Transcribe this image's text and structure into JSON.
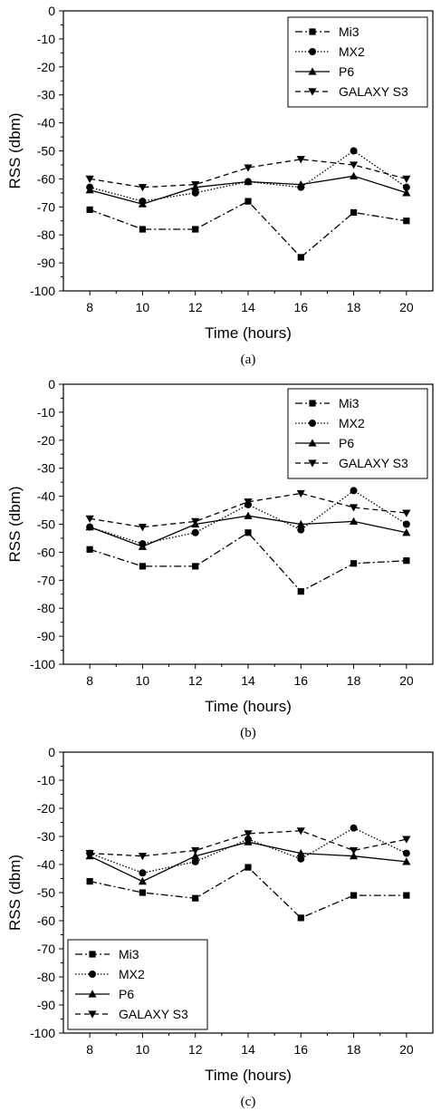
{
  "chart_data": [
    {
      "type": "line",
      "caption": "(a)",
      "xlabel": "Time (hours)",
      "ylabel": "RSS (dbm)",
      "x": [
        8,
        10,
        12,
        14,
        16,
        18,
        20
      ],
      "xticks": [
        "8",
        "10",
        "12",
        "14",
        "16",
        "18",
        "20"
      ],
      "yticks": [
        "0",
        "-10",
        "-20",
        "-30",
        "-40",
        "-50",
        "-60",
        "-70",
        "-80",
        "-90",
        "-100"
      ],
      "xlim": [
        7,
        21
      ],
      "ylim": [
        -100,
        0
      ],
      "legend_position": "top-right",
      "series": [
        {
          "name": "Mi3",
          "values": [
            -71,
            -78,
            -78,
            -68,
            -88,
            -72,
            -75
          ]
        },
        {
          "name": "MX2",
          "values": [
            -63,
            -68,
            -65,
            -61,
            -63,
            -50,
            -63
          ]
        },
        {
          "name": "P6",
          "values": [
            -64,
            -69,
            -63,
            -61,
            -62,
            -59,
            -65
          ]
        },
        {
          "name": "GALAXY S3",
          "values": [
            -60,
            -63,
            -62,
            -56,
            -53,
            -55,
            -60
          ]
        }
      ]
    },
    {
      "type": "line",
      "caption": "(b)",
      "xlabel": "Time (hours)",
      "ylabel": "RSS (dbm)",
      "x": [
        8,
        10,
        12,
        14,
        16,
        18,
        20
      ],
      "xticks": [
        "8",
        "10",
        "12",
        "14",
        "16",
        "18",
        "20"
      ],
      "yticks": [
        "0",
        "-10",
        "-20",
        "-30",
        "-40",
        "-50",
        "-60",
        "-70",
        "-80",
        "-90",
        "-100"
      ],
      "xlim": [
        7,
        21
      ],
      "ylim": [
        -100,
        0
      ],
      "legend_position": "top-right",
      "series": [
        {
          "name": "Mi3",
          "values": [
            -59,
            -65,
            -65,
            -53,
            -74,
            -64,
            -63
          ]
        },
        {
          "name": "MX2",
          "values": [
            -51,
            -57,
            -53,
            -43,
            -52,
            -38,
            -50
          ]
        },
        {
          "name": "P6",
          "values": [
            -51,
            -58,
            -50,
            -47,
            -50,
            -49,
            -53
          ]
        },
        {
          "name": "GALAXY S3",
          "values": [
            -48,
            -51,
            -49,
            -42,
            -39,
            -44,
            -46
          ]
        }
      ]
    },
    {
      "type": "line",
      "caption": "(c)",
      "xlabel": "Time (hours)",
      "ylabel": "RSS (dbm)",
      "x": [
        8,
        10,
        12,
        14,
        16,
        18,
        20
      ],
      "xticks": [
        "8",
        "10",
        "12",
        "14",
        "16",
        "18",
        "20"
      ],
      "yticks": [
        "0",
        "-10",
        "-20",
        "-30",
        "-40",
        "-50",
        "-60",
        "-70",
        "-80",
        "-90",
        "-100"
      ],
      "xlim": [
        7,
        21
      ],
      "ylim": [
        -100,
        0
      ],
      "legend_position": "bottom-left",
      "series": [
        {
          "name": "Mi3",
          "values": [
            -46,
            -50,
            -52,
            -41,
            -59,
            -51,
            -51
          ]
        },
        {
          "name": "MX2",
          "values": [
            -36,
            -43,
            -39,
            -31,
            -38,
            -27,
            -36
          ]
        },
        {
          "name": "P6",
          "values": [
            -37,
            -46,
            -37,
            -32,
            -36,
            -37,
            -39
          ]
        },
        {
          "name": "GALAXY S3",
          "values": [
            -36,
            -37,
            -35,
            -29,
            -28,
            -35,
            -31
          ]
        }
      ]
    }
  ],
  "series_style": {
    "Mi3": {
      "dash": "8,3,2,3",
      "marker": "square"
    },
    "MX2": {
      "dash": "1.5,2",
      "marker": "circle"
    },
    "P6": {
      "dash": "",
      "marker": "triangle-up"
    },
    "GALAXY S3": {
      "dash": "6,4",
      "marker": "triangle-down"
    }
  },
  "colors": {
    "line": "#000000",
    "background": "#ffffff"
  }
}
